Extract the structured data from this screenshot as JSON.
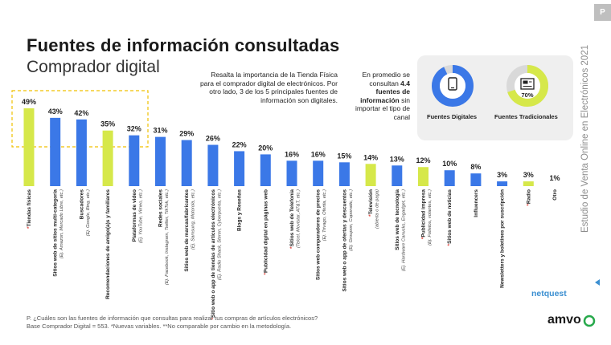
{
  "title": "Fuentes de información consultadas",
  "subtitle": "Comprador digital",
  "page_tag": "P",
  "side_text": "Estudio de Venta Online en Electrónicos 2021",
  "note_left": "Resalta la importancia de la Tienda Física para el comprador digital de electrónicos. Por otro lado, 3 de los 5 principales fuentes de información son digitales.",
  "note_right_pre": "En promedio se consultan",
  "note_right_bold": "4.4 fuentes de información",
  "note_right_post": "sin importar el tipo de canal",
  "kpis": {
    "digital": {
      "label": "Fuentes Digitales",
      "value": "93%",
      "fraction": 0.93,
      "color": "#3b78e7"
    },
    "traditional": {
      "label": "Fuentes Tradicionales",
      "value": "70%",
      "fraction": 0.7,
      "color": "#d6e84a"
    }
  },
  "footer": {
    "line1": "P. ¿Cuáles son las fuentes de información que consultas para realizar tus compras de artículos electrónicos?",
    "line2": "Base Comprador Digital = 553. *Nuevas variables. **No comparable por cambio en la metodología."
  },
  "logos": {
    "netquest": "netquest",
    "amvo": "amvo"
  },
  "colors": {
    "digital": "#3b78e7",
    "traditional": "#d6e84a",
    "asterisk": "#e0433a",
    "highlight": "#f0c000"
  },
  "chart_data": {
    "type": "bar",
    "title": "Fuentes de información consultadas",
    "ylim": [
      0,
      50
    ],
    "value_suffix": "%",
    "legend": [
      "Fuentes Digitales",
      "Fuentes Tradicionales"
    ],
    "bars": [
      {
        "label": "Tiendas físicas",
        "sub": "",
        "value": 49,
        "group": "traditional",
        "star": true
      },
      {
        "label": "Sitios web de sitios multi-categoría",
        "sub": "(Ej. Amazon, Mercado Libre, etc.)",
        "value": 43,
        "group": "digital",
        "star": false
      },
      {
        "label": "Buscadores",
        "sub": "(Ej. Google, Bing, etc.)",
        "value": 42,
        "group": "digital",
        "star": false
      },
      {
        "label": "Recomendaciones de amigo(a)s y familiares",
        "sub": "",
        "value": 35,
        "group": "traditional",
        "star": false
      },
      {
        "label": "Plataformas de video",
        "sub": "(Ej. YouTube, Vimeo, etc.)",
        "value": 32,
        "group": "digital",
        "star": false
      },
      {
        "label": "Redes sociales",
        "sub": "(Ej. Facebook, Instagram, Twitter, TikTok, etc.)",
        "value": 31,
        "group": "digital",
        "star": false
      },
      {
        "label": "Sitios web de marcas/fabricantes",
        "sub": "(Ej. Samsung, Motorola, etc.)",
        "value": 29,
        "group": "digital",
        "star": false
      },
      {
        "label": "Sitio web o app de tiendas de artículos electrónicos",
        "sub": "(Ej. Radio Shack, Steren, Cyberpuerta, etc.)",
        "value": 26,
        "group": "digital",
        "star": true
      },
      {
        "label": "Blogs y Reseñas",
        "sub": "",
        "value": 22,
        "group": "digital",
        "star": false
      },
      {
        "label": "Publicidad digital en páginas web",
        "sub": "",
        "value": 20,
        "group": "digital",
        "star": true
      },
      {
        "label": "Sitios web de Telefonía",
        "sub": "(Telcel, Movistar, AT&T, etc.)",
        "value": 16,
        "group": "digital",
        "star": true
      },
      {
        "label": "Sitios web comparadores de precios",
        "sub": "(Ej. Trivago, Ofertia, etc.)",
        "value": 16,
        "group": "digital",
        "star": false
      },
      {
        "label": "Sitios web o app de ofertas y descuentos",
        "sub": "(Ej. Groupon, Cuponatic, etc.)",
        "value": 15,
        "group": "digital",
        "star": false
      },
      {
        "label": "Televisión",
        "sub": "(abierta o de paga)",
        "value": 14,
        "group": "traditional",
        "star": true
      },
      {
        "label": "Sitios web de tecnología",
        "sub": "(Ej. Hardware Canucks, Engadget, etc.)",
        "value": 13,
        "group": "digital",
        "star": false
      },
      {
        "label": "Publicidad impresa",
        "sub": "(Ej. Folletos, volantes, etc.)",
        "value": 12,
        "group": "traditional",
        "star": true
      },
      {
        "label": "Sitios web de noticias",
        "sub": "",
        "value": 10,
        "group": "digital",
        "star": true
      },
      {
        "label": "Influencers",
        "sub": "",
        "value": 8,
        "group": "digital",
        "star": false
      },
      {
        "label": "Newsletters y boletines por suscripción",
        "sub": "",
        "value": 3,
        "group": "digital",
        "star": false
      },
      {
        "label": "Radio",
        "sub": "",
        "value": 3,
        "group": "traditional",
        "star": true
      },
      {
        "label": "Otro",
        "sub": "",
        "value": 1,
        "group": "none",
        "star": false
      }
    ]
  }
}
